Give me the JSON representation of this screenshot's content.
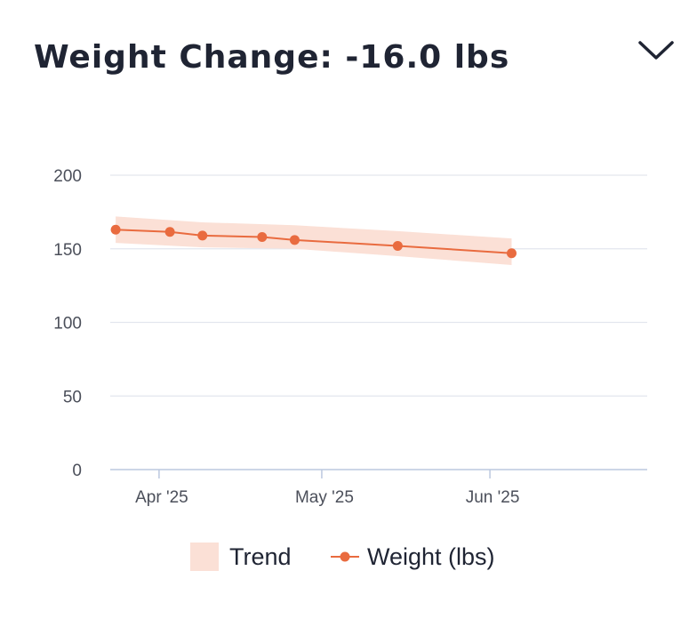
{
  "header": {
    "title": "Weight Change: -16.0 lbs"
  },
  "colors": {
    "accent": "#e96b3f",
    "trend_band": "#fbe0d6",
    "grid": "#e3e6ee",
    "axis": "#bcc8df",
    "title": "#1f2433"
  },
  "icons": {
    "collapse": "chevron-down-icon"
  },
  "legend": {
    "trend_label": "Trend",
    "weight_label": "Weight (lbs)"
  },
  "chart_data": {
    "type": "line",
    "title": "",
    "xlabel": "",
    "ylabel": "",
    "ylim": [
      0,
      200
    ],
    "yticks": [
      0,
      50,
      100,
      150,
      200
    ],
    "xticks": [
      {
        "date": "2025-04-01",
        "label": "Apr '25"
      },
      {
        "date": "2025-05-01",
        "label": "May '25"
      },
      {
        "date": "2025-06-01",
        "label": "Jun '25"
      }
    ],
    "xlim": [
      "2025-03-23",
      "2025-06-30"
    ],
    "grid": true,
    "legend_position": "bottom",
    "series": [
      {
        "name": "Weight (lbs)",
        "x": [
          "2025-03-24",
          "2025-04-03",
          "2025-04-09",
          "2025-04-20",
          "2025-04-26",
          "2025-05-15",
          "2025-06-05"
        ],
        "values": [
          163,
          161.5,
          159,
          158,
          156,
          152,
          147
        ]
      },
      {
        "name": "Trend",
        "type": "area-band",
        "x": [
          "2025-03-24",
          "2025-04-09",
          "2025-04-26",
          "2025-05-15",
          "2025-06-05"
        ],
        "upper": [
          172,
          168,
          166,
          162,
          157
        ],
        "lower": [
          154,
          151,
          150,
          145,
          139
        ]
      }
    ]
  }
}
